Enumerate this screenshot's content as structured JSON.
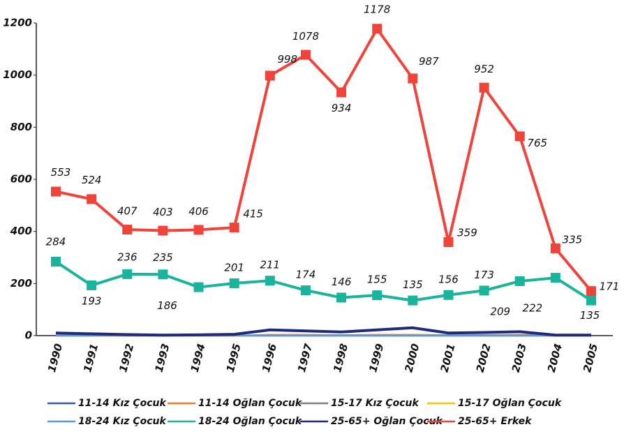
{
  "chart_data": {
    "type": "line",
    "categories": [
      "1990",
      "1991",
      "1992",
      "1993",
      "1994",
      "1995",
      "1996",
      "1997",
      "1998",
      "1999",
      "2000",
      "2001",
      "2002",
      "2003",
      "2004",
      "2005"
    ],
    "ylim": [
      0,
      1200
    ],
    "yticks": [
      0,
      200,
      400,
      600,
      800,
      1000,
      1200
    ],
    "grid": false,
    "legend": "bottom",
    "series": [
      {
        "name": "11-14 Kız Çocuk",
        "color": "#2e5aa8",
        "values": [
          0,
          0,
          0,
          0,
          0,
          0,
          0,
          0,
          0,
          0,
          0,
          0,
          0,
          0,
          0,
          0
        ]
      },
      {
        "name": "11-14 Oğlan Çocuk",
        "color": "#f07a2a",
        "values": [
          0,
          0,
          0,
          0,
          0,
          0,
          3,
          3,
          2,
          3,
          3,
          2,
          2,
          3,
          3,
          0
        ]
      },
      {
        "name": "15-17 Kız Çocuk",
        "color": "#7f7f7f",
        "values": [
          0,
          0,
          0,
          0,
          0,
          0,
          0,
          0,
          0,
          0,
          0,
          0,
          0,
          0,
          0,
          0
        ]
      },
      {
        "name": "15-17 Oğlan Çocuk",
        "color": "#ffc000",
        "values": [
          0,
          0,
          0,
          0,
          0,
          0,
          0,
          0,
          0,
          0,
          0,
          0,
          0,
          0,
          0,
          0
        ]
      },
      {
        "name": "18-24 Kız Çocuk",
        "color": "#5b9bd5",
        "values": [
          0,
          0,
          0,
          0,
          0,
          0,
          0,
          0,
          0,
          0,
          0,
          0,
          0,
          0,
          0,
          0
        ]
      },
      {
        "name": "18-24 Oğlan Çocuk",
        "color": "#1ab39c",
        "marker": "square",
        "data_labels": true,
        "values": [
          284,
          193,
          236,
          235,
          186,
          201,
          211,
          174,
          146,
          155,
          135,
          156,
          173,
          209,
          222,
          135
        ]
      },
      {
        "name": "25-65+ Oğlan Çocuk",
        "color": "#1f2a7a",
        "values": [
          10,
          7,
          4,
          2,
          3,
          5,
          22,
          18,
          14,
          22,
          30,
          10,
          12,
          15,
          2,
          2
        ]
      },
      {
        "name": "25-65+ Erkek",
        "color": "#f0433a",
        "marker": "square",
        "data_labels": true,
        "values": [
          553,
          524,
          407,
          403,
          406,
          415,
          998,
          1078,
          934,
          1178,
          987,
          359,
          952,
          765,
          335,
          171
        ]
      }
    ]
  }
}
